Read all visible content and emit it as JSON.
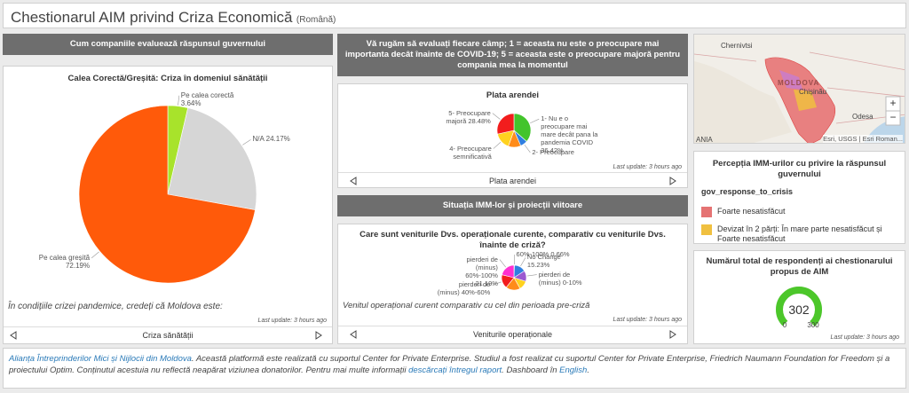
{
  "header": {
    "title": "Chestionarul AIM privind Criza Economică",
    "language": "(Română)"
  },
  "left": {
    "heading": "Cum companiile  evaluează răspunsul guvernului",
    "card": {
      "title": "Calea Corectă/Greșită: Criza în domeniul sănătății",
      "chart": {
        "type": "pie",
        "categories": [
          "Pe calea corectă",
          "N/A",
          "Pe calea greșită"
        ],
        "values": [
          3.64,
          24.17,
          72.19
        ],
        "value_labels": [
          "3.64%",
          "24.17%",
          "72.19%"
        ],
        "colors": [
          "#a8e32b",
          "#d6d6d6",
          "#ff5a0a"
        ]
      },
      "caption": "În condițiile crizei pandemice, credeți că Moldova este:",
      "updated": "Last update: 3 hours ago",
      "nav": "Criza sănătății"
    }
  },
  "middle": {
    "heading": "Vă rugăm să evaluați fiecare câmp; 1 = aceasta nu este o preocupare mai importanta decât înainte de COVID-19; 5 = aceasta este o preocupare majoră pentru compania mea la momentul",
    "card1": {
      "title": "Plata arendei",
      "chart": {
        "type": "pie",
        "categories": [
          "1- Nu e o preocupare mai mare decât pana la pandemia COVID",
          "2- Preocupare",
          null,
          "4- Preocupare semnificativă",
          "5- Preocupare majoră"
        ],
        "values": [
          36.42,
          7,
          12,
          16.1,
          28.48
        ],
        "value_labels": [
          "36.42%",
          null,
          null,
          null,
          "28.48%"
        ],
        "colors": [
          "#43c42c",
          "#2f7fe0",
          "#ff8c1a",
          "#ffd21f",
          "#f21d1d"
        ]
      },
      "updated": "Last update: 3 hours ago",
      "nav": "Plata arendei"
    },
    "heading2": "Situația IMM-lor și proiecții viitoare",
    "card2": {
      "title": "Care sunt veniturile Dvs. operaționale curente, comparativ cu veniturile Dvs. înainte de criză?",
      "chart": {
        "type": "pie",
        "categories": [
          "60%-100%",
          "No Change",
          "pierderi de (minus) 0-10%",
          null,
          null,
          "pierderi de (minus) 40%-60%",
          "pierderi de (minus) 60%-100%"
        ],
        "values": [
          0.66,
          15.23,
          14,
          12,
          18.92,
          18,
          21.19
        ],
        "value_labels": [
          "0.66%",
          "15.23%",
          null,
          null,
          null,
          null,
          "21.19%"
        ],
        "colors": [
          "#3cc23c",
          "#2f7fe0",
          "#9b59d0",
          "#ffd21f",
          "#ff8c1a",
          "#f21d1d",
          "#ff2fd0"
        ]
      },
      "subtitle": "Venitul operațional curent comparativ cu cel din perioada pre-criză",
      "updated": "Last update: 3 hours ago",
      "nav": "Veniturile operaționale"
    }
  },
  "right": {
    "map": {
      "labels": [
        "Chernivtsi",
        "MOLDOVA",
        "Chișinău",
        "Odesa",
        "ANIA"
      ],
      "attribution": "Esri, USGS | Esri Roman..."
    },
    "card1": {
      "title": "Percepția IMM-urilor cu privire la răspunsul guvernului",
      "field": "gov_response_to_crisis",
      "legend": [
        {
          "name": "Foarte nesatisfăcut",
          "color": "#e57373"
        },
        {
          "name": "Devizat în 2 părți: În mare parte nesatisfăcut și Foarte nesatisfăcut",
          "color": "#f0c040"
        }
      ]
    },
    "card2": {
      "title": "Numărul total de respondenți ai chestionarului propus de AIM",
      "gauge": {
        "value": 302,
        "min": 0,
        "max": 300,
        "color": "#4cc72a"
      },
      "updated": "Last update: 3 hours ago"
    }
  },
  "footer": {
    "parts": [
      {
        "text": "Alianța Întreprinderilor Mici și Nijlocii din Moldova",
        "link": true
      },
      {
        "text": ". Această platformă este realizată cu suportul Center for Private Enterprise. Studiul a fost realizat cu suportul  Center for Private Enterprise, Friedrich Naumann Foundation for Freedom și a proiectului Optim. Conținutul acestuia nu reflectă neapărat viziunea donatorilor. Pentru mai multe informații ",
        "link": false
      },
      {
        "text": "descărcați întregul raport",
        "link": true
      },
      {
        "text": ". Dashboard în ",
        "link": false
      },
      {
        "text": "English",
        "link": true
      },
      {
        "text": ".",
        "link": false
      }
    ]
  }
}
